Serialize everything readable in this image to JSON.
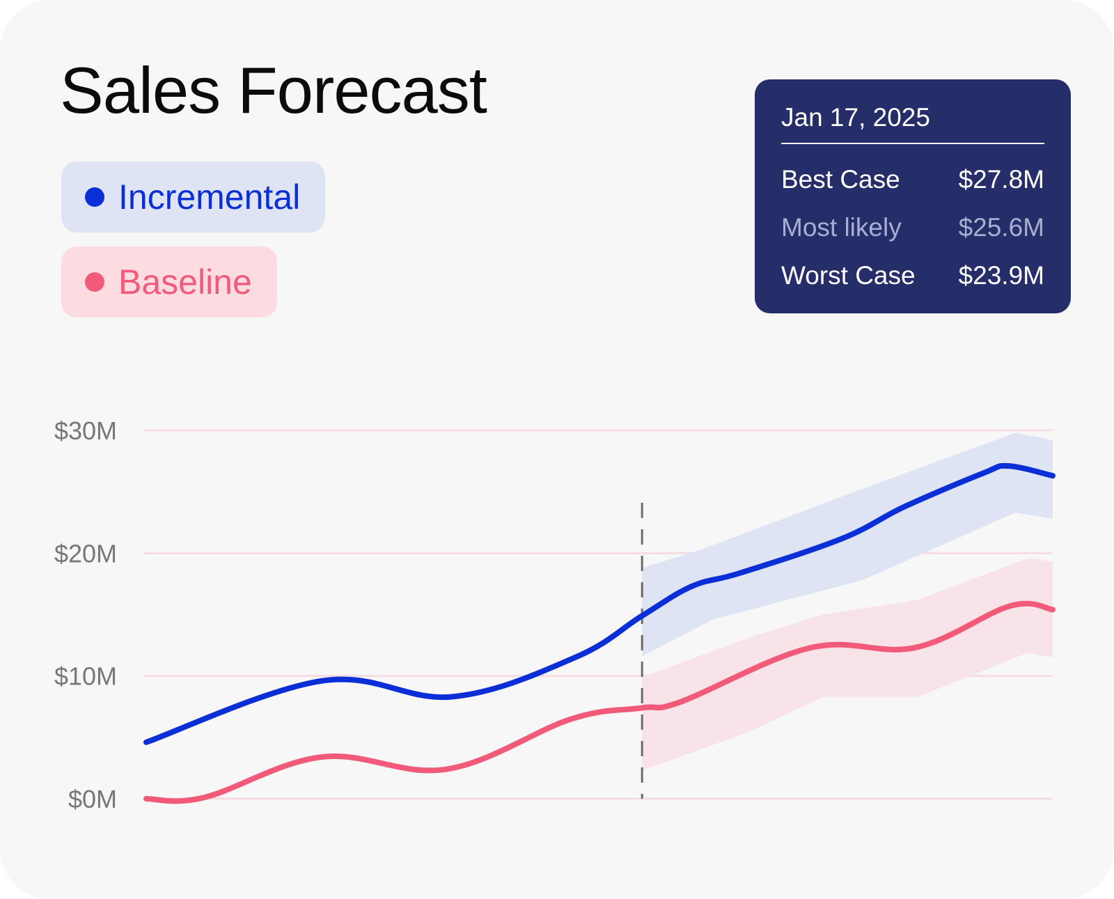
{
  "title": "Sales Forecast",
  "legend": {
    "items": [
      {
        "label": "Incremental",
        "color": "#0a2fd6"
      },
      {
        "label": "Baseline",
        "color": "#f25a7a"
      }
    ]
  },
  "tooltip": {
    "date": "Jan 17, 2025",
    "rows": [
      {
        "label": "Best Case",
        "value": "$27.8M"
      },
      {
        "label": "Most likely",
        "value": "$25.6M"
      },
      {
        "label": "Worst Case",
        "value": "$23.9M"
      }
    ]
  },
  "colors": {
    "incremental": "#0a2fd6",
    "incremental_band": "#dfe4f5",
    "baseline": "#f25a7a",
    "baseline_band": "#f8e3e8",
    "grid": "#f6dde3",
    "divider": "#6b6b6b"
  },
  "chart_data": {
    "type": "line",
    "title": "Sales Forecast",
    "xlabel": "",
    "ylabel": "",
    "ylim": [
      0,
      30
    ],
    "yticks": [
      {
        "value": 0,
        "label": "$0M"
      },
      {
        "value": 10,
        "label": "$10M"
      },
      {
        "value": 20,
        "label": "$20M"
      },
      {
        "value": 30,
        "label": "$30M"
      }
    ],
    "xlim": [
      0,
      100
    ],
    "grid": true,
    "legend_position": "top-left",
    "forecast_start_x": 54.7,
    "series": [
      {
        "name": "Incremental",
        "color": "#0a2fd6",
        "points": [
          [
            0,
            4.6
          ],
          [
            19.4,
            9.6
          ],
          [
            33.7,
            8.3
          ],
          [
            47.3,
            11.5
          ],
          [
            54.7,
            14.9
          ],
          [
            60.2,
            17.3
          ],
          [
            65.6,
            18.4
          ],
          [
            76.8,
            21.2
          ],
          [
            83.7,
            23.8
          ],
          [
            92.3,
            26.5
          ],
          [
            95.1,
            27.1
          ],
          [
            100,
            26.3
          ]
        ],
        "band": {
          "color": "#dfe4f5",
          "upper": [
            [
              54.7,
              18.8
            ],
            [
              60.9,
              20.2
            ],
            [
              78.5,
              25.1
            ],
            [
              95.9,
              29.8
            ],
            [
              100,
              29.2
            ]
          ],
          "lower": [
            [
              54.7,
              11.6
            ],
            [
              62.5,
              14.6
            ],
            [
              79.0,
              17.8
            ],
            [
              95.9,
              23.3
            ],
            [
              100,
              22.8
            ]
          ]
        }
      },
      {
        "name": "Baseline",
        "color": "#f25a7a",
        "points": [
          [
            0,
            0
          ],
          [
            6.4,
            0.1
          ],
          [
            19.4,
            3.4
          ],
          [
            33.1,
            2.4
          ],
          [
            46.9,
            6.5
          ],
          [
            54.7,
            7.4
          ],
          [
            59.0,
            7.9
          ],
          [
            73.3,
            12.3
          ],
          [
            84.8,
            12.3
          ],
          [
            95.3,
            15.7
          ],
          [
            100,
            15.4
          ]
        ],
        "band": {
          "color": "#f8e3e8",
          "upper": [
            [
              54.7,
              9.9
            ],
            [
              67.2,
              13.3
            ],
            [
              74.7,
              15.0
            ],
            [
              85.1,
              16.2
            ],
            [
              97.3,
              19.6
            ],
            [
              100,
              19.3
            ]
          ],
          "lower": [
            [
              54.7,
              2.3
            ],
            [
              66.4,
              5.4
            ],
            [
              74.7,
              8.3
            ],
            [
              85.1,
              8.3
            ],
            [
              97.3,
              11.9
            ],
            [
              100,
              11.5
            ]
          ]
        }
      }
    ]
  }
}
